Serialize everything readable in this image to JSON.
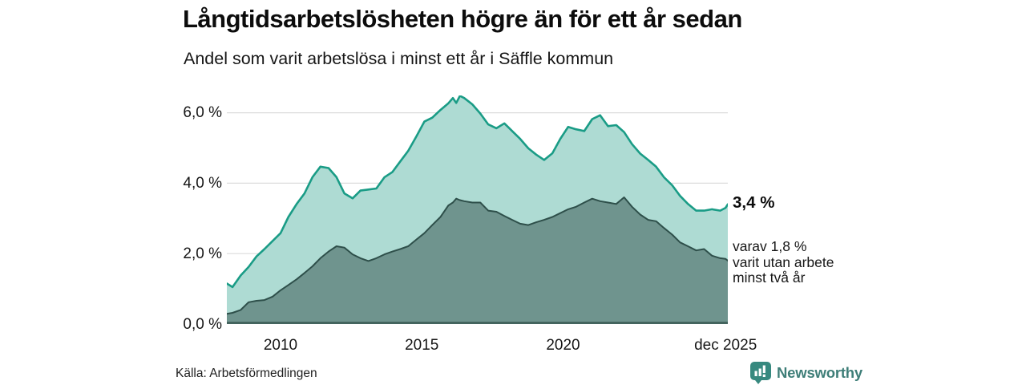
{
  "header": {
    "title": "Långtidsarbetslösheten högre än för ett år sedan",
    "subtitle": "Andel som varit arbetslösa i minst ett år i Säffle kommun"
  },
  "annotations": {
    "total_value": "3,4 %",
    "subset_note": "varav 1,8 %\nvarit utan arbete\nminst två år"
  },
  "footer": {
    "source": "Källa: Arbetsförmedlingen",
    "brand": "Newsworthy"
  },
  "colors": {
    "line_total": "#1a9c86",
    "fill_total": "#aedbd3",
    "line_subset": "#2e4f4a",
    "fill_subset": "#6f948e",
    "grid": "#dcdcdc",
    "axis": "#3f5f59",
    "brand_teal": "#37897f",
    "text": "#161616"
  },
  "chart_data": {
    "type": "area",
    "title": "Långtidsarbetslösheten högre än för ett år sedan",
    "subtitle": "Andel som varit arbetslösa i minst ett år i Säffle kommun",
    "xlabel": "",
    "ylabel": "",
    "xlim": [
      2008.1,
      2025.83
    ],
    "ylim": [
      0,
      6.5
    ],
    "grid": "horizontal",
    "legend_position": "none",
    "x": [
      2008.1,
      2008.3,
      2008.59,
      2008.87,
      2009.15,
      2009.43,
      2009.72,
      2010.0,
      2010.28,
      2010.57,
      2010.85,
      2011.13,
      2011.41,
      2011.7,
      2011.98,
      2012.26,
      2012.55,
      2012.83,
      2013.11,
      2013.39,
      2013.68,
      2013.96,
      2014.24,
      2014.52,
      2014.81,
      2015.09,
      2015.37,
      2015.66,
      2015.94,
      2016.1,
      2016.22,
      2016.35,
      2016.5,
      2016.79,
      2017.07,
      2017.35,
      2017.64,
      2017.92,
      2018.2,
      2018.48,
      2018.77,
      2019.05,
      2019.33,
      2019.62,
      2019.9,
      2020.18,
      2020.46,
      2020.75,
      2021.03,
      2021.31,
      2021.59,
      2021.88,
      2022.16,
      2022.44,
      2022.73,
      2023.01,
      2023.29,
      2023.57,
      2023.86,
      2024.14,
      2024.42,
      2024.71,
      2024.99,
      2025.27,
      2025.56,
      2025.75,
      2025.83
    ],
    "series": [
      {
        "name": "Arbetslösa minst ett år",
        "color": "#1a9c86",
        "fill": "#aedbd3",
        "stroke_width": 2.6,
        "values": [
          1.15,
          1.05,
          1.38,
          1.62,
          1.92,
          2.13,
          2.36,
          2.58,
          3.04,
          3.41,
          3.71,
          4.17,
          4.47,
          4.43,
          4.17,
          3.71,
          3.57,
          3.79,
          3.82,
          3.85,
          4.17,
          4.32,
          4.62,
          4.92,
          5.33,
          5.75,
          5.86,
          6.08,
          6.27,
          6.42,
          6.28,
          6.48,
          6.42,
          6.24,
          5.98,
          5.67,
          5.56,
          5.7,
          5.48,
          5.26,
          4.99,
          4.81,
          4.66,
          4.85,
          5.26,
          5.6,
          5.53,
          5.48,
          5.82,
          5.93,
          5.62,
          5.65,
          5.45,
          5.11,
          4.84,
          4.66,
          4.47,
          4.17,
          3.94,
          3.64,
          3.41,
          3.22,
          3.22,
          3.26,
          3.22,
          3.3,
          3.4
        ]
      },
      {
        "name": "Varav arbetslösa minst två år",
        "color": "#2e4f4a",
        "fill": "#6f948e",
        "stroke_width": 2.0,
        "values": [
          0.29,
          0.32,
          0.4,
          0.62,
          0.66,
          0.68,
          0.78,
          0.96,
          1.11,
          1.27,
          1.45,
          1.64,
          1.87,
          2.06,
          2.21,
          2.17,
          1.98,
          1.87,
          1.79,
          1.87,
          1.98,
          2.06,
          2.13,
          2.21,
          2.4,
          2.58,
          2.81,
          3.04,
          3.37,
          3.45,
          3.56,
          3.52,
          3.49,
          3.45,
          3.45,
          3.22,
          3.19,
          3.07,
          2.96,
          2.85,
          2.81,
          2.89,
          2.96,
          3.04,
          3.15,
          3.26,
          3.33,
          3.45,
          3.56,
          3.49,
          3.45,
          3.41,
          3.6,
          3.33,
          3.11,
          2.96,
          2.92,
          2.73,
          2.54,
          2.32,
          2.21,
          2.09,
          2.13,
          1.94,
          1.87,
          1.85,
          1.8
        ]
      }
    ],
    "y_ticks": [
      {
        "v": 0,
        "label": "0,0 %"
      },
      {
        "v": 2,
        "label": "2,0 %"
      },
      {
        "v": 4,
        "label": "4,0 %"
      },
      {
        "v": 6,
        "label": "6,0 %"
      }
    ],
    "x_ticks": [
      {
        "v": 2010,
        "label": "2010"
      },
      {
        "v": 2015,
        "label": "2015"
      },
      {
        "v": 2020,
        "label": "2020"
      },
      {
        "v": 2025.75,
        "label": "dec 2025"
      }
    ],
    "end_labels": {
      "total": "3,4 %",
      "subset": "1,8 %"
    }
  }
}
